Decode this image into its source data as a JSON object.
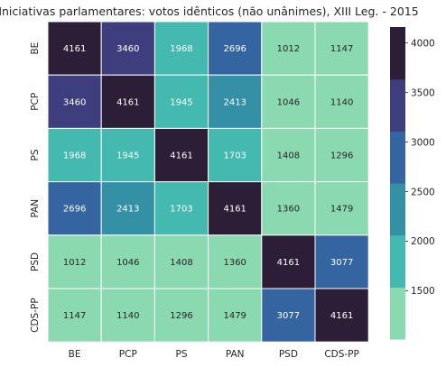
{
  "chart_data": {
    "type": "heatmap",
    "title": "Iniciativas parlamentares: votos idênticos (não unânimes), XIII Leg. - 2015",
    "x_categories": [
      "BE",
      "PCP",
      "PS",
      "PAN",
      "PSD",
      "CDS-PP"
    ],
    "y_categories": [
      "BE",
      "PCP",
      "PS",
      "PAN",
      "PSD",
      "CDS-PP"
    ],
    "values": [
      [
        4161,
        3460,
        1968,
        2696,
        1012,
        1147
      ],
      [
        3460,
        4161,
        1945,
        2413,
        1046,
        1140
      ],
      [
        1968,
        1945,
        4161,
        1703,
        1408,
        1296
      ],
      [
        2696,
        2413,
        1703,
        4161,
        1360,
        1479
      ],
      [
        1012,
        1046,
        1408,
        1360,
        4161,
        3077
      ],
      [
        1147,
        1140,
        1296,
        1479,
        3077,
        4161
      ]
    ],
    "colorbar": {
      "range": [
        1012,
        4161
      ],
      "ticks": [
        1500,
        2000,
        2500,
        3000,
        3500,
        4000
      ],
      "colors": [
        "#8bd9b0",
        "#43b9b0",
        "#3390a5",
        "#3565a0",
        "#3e3d7d",
        "#2b1e36"
      ]
    }
  }
}
